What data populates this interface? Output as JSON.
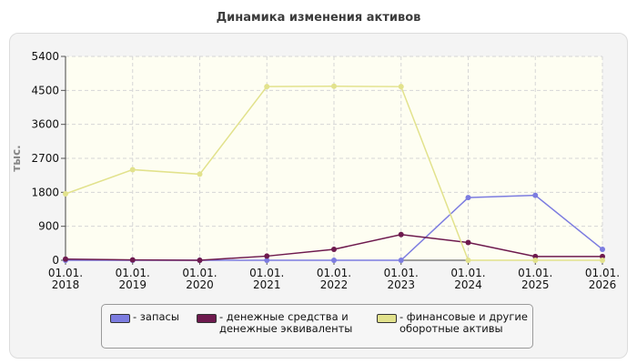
{
  "chart_data": {
    "type": "line",
    "title": "Динамика изменения активов",
    "ylabel": "тыс.",
    "xlabel": "",
    "categories": [
      "01.01.2018",
      "01.01.2019",
      "01.01.2020",
      "01.01.2021",
      "01.01.2022",
      "01.01.2023",
      "01.01.2024",
      "01.01.2025",
      "01.01.2026"
    ],
    "x_tick_labels": [
      [
        "01.01.",
        "2018"
      ],
      [
        "01.01.",
        "2019"
      ],
      [
        "01.01.",
        "2020"
      ],
      [
        "01.01.",
        "2021"
      ],
      [
        "01.01.",
        "2022"
      ],
      [
        "01.01.",
        "2023"
      ],
      [
        "01.01.",
        "2024"
      ],
      [
        "01.01.",
        "2025"
      ],
      [
        "01.01.",
        "2026"
      ]
    ],
    "y_ticks": [
      "0",
      "900",
      "1800",
      "2700",
      "3600",
      "4500",
      "5400"
    ],
    "ylim": [
      0,
      5400
    ],
    "grid": true,
    "legend_position": "bottom",
    "series": [
      {
        "name": "- запасы",
        "name_lines": [
          "- запасы"
        ],
        "color": "#7c7ce0",
        "values": [
          0,
          0,
          0,
          0,
          0,
          0,
          1660,
          1720,
          290
        ]
      },
      {
        "name": "- денежные средства и денежные эквиваленты",
        "name_lines": [
          "- денежные средства и",
          "денежные эквиваленты"
        ],
        "color": "#6e1a4e",
        "values": [
          30,
          10,
          0,
          110,
          290,
          680,
          470,
          100,
          100
        ]
      },
      {
        "name": "- финансовые и другие оборотные активы",
        "name_lines": [
          "- финансовые и другие",
          "оборотные активы"
        ],
        "color": "#e2e28c",
        "values": [
          1760,
          2400,
          2280,
          4600,
          4610,
          4600,
          0,
          0,
          0
        ]
      }
    ]
  }
}
